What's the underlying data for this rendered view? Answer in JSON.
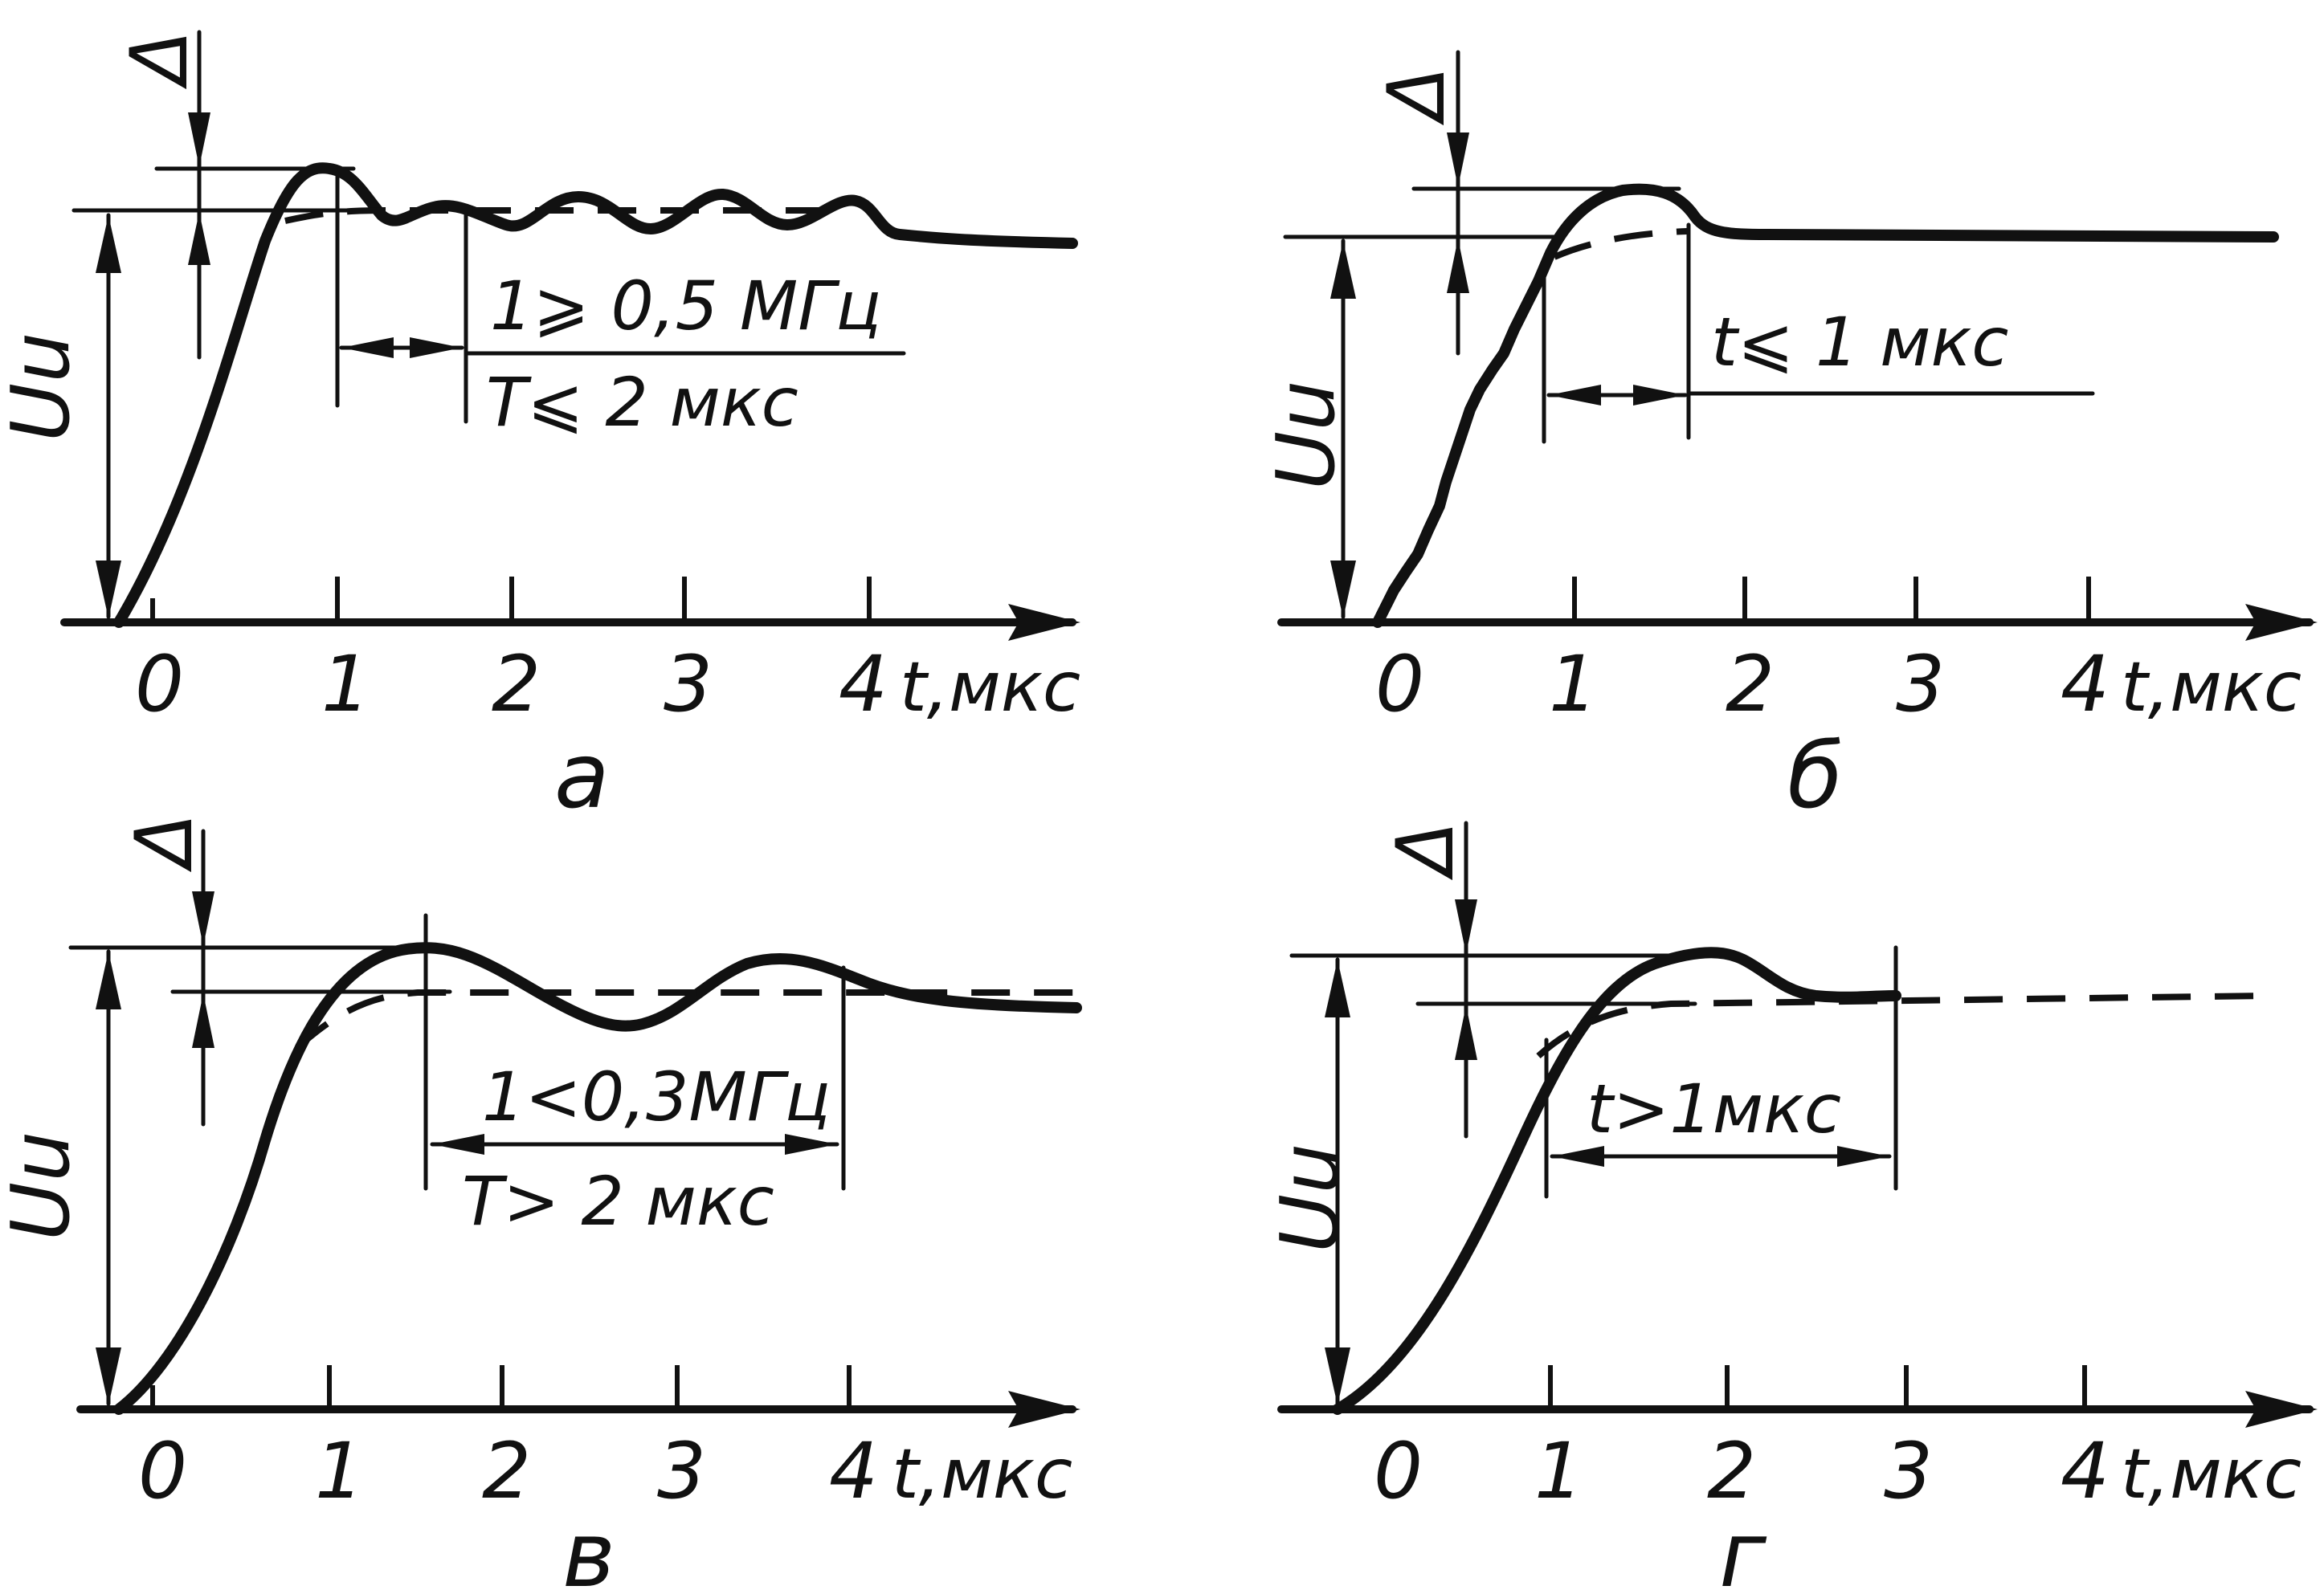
{
  "panels": [
    {
      "caption": "а",
      "ylabel": "Uu",
      "delta": "Δ",
      "xtick_labels": [
        "0",
        "1",
        "2",
        "3",
        "4"
      ],
      "axis_unit": "t,мкс",
      "annotation_top": "1⩾ 0,5 МГц",
      "annotation_bottom": "T⩽ 2 мкс"
    },
    {
      "caption": "б",
      "ylabel": "Uu",
      "delta": "Δ",
      "xtick_labels": [
        "0",
        "1",
        "2",
        "3",
        "4"
      ],
      "axis_unit": "t,мкс",
      "annotation_top": "t⩽ 1 мкс"
    },
    {
      "caption": "в",
      "ylabel": "Uu",
      "delta": "Δ",
      "xtick_labels": [
        "0",
        "1",
        "2",
        "3",
        "4"
      ],
      "axis_unit": "t,мкс",
      "annotation_top": "1<0,3МГц",
      "annotation_bottom": "T> 2 мкс"
    },
    {
      "caption": "г",
      "ylabel": "Uu",
      "delta": "Δ",
      "xtick_labels": [
        "0",
        "1",
        "2",
        "3",
        "4"
      ],
      "axis_unit": "t,мкс",
      "annotation_top": "t>1мкс"
    }
  ]
}
